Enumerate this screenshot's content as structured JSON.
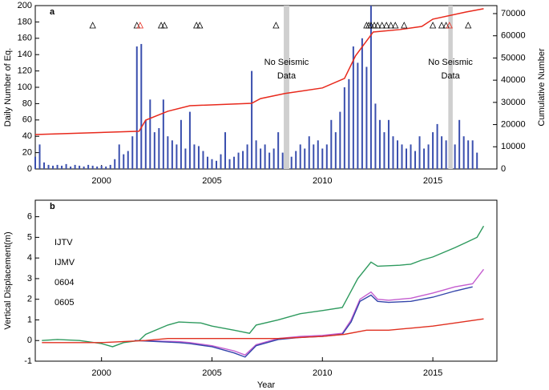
{
  "chart_data": [
    {
      "type": "bar",
      "panel_label": "a",
      "ylabel": "Daily Number of Eq.",
      "y2label": "Cumulative Number",
      "xlim": [
        1997,
        2017.9
      ],
      "xticks": [
        2000,
        2005,
        2010,
        2015
      ],
      "ylim": [
        0,
        200
      ],
      "yticks": [
        0,
        20,
        40,
        60,
        80,
        100,
        120,
        140,
        160,
        180,
        200
      ],
      "y2lim": [
        0,
        73600
      ],
      "y2ticks": [
        0,
        10000,
        20000,
        30000,
        40000,
        50000,
        60000,
        70000
      ],
      "color": "#3a4fae",
      "x": [
        1997.0,
        1997.2,
        1997.4,
        1997.6,
        1997.8,
        1998.0,
        1998.2,
        1998.4,
        1998.6,
        1998.8,
        1999.0,
        1999.2,
        1999.4,
        1999.6,
        1999.8,
        2000.0,
        2000.2,
        2000.4,
        2000.6,
        2000.8,
        2001.0,
        2001.2,
        2001.4,
        2001.6,
        2001.8,
        2002.0,
        2002.2,
        2002.4,
        2002.6,
        2002.8,
        2003.0,
        2003.2,
        2003.4,
        2003.6,
        2003.8,
        2004.0,
        2004.2,
        2004.4,
        2004.6,
        2004.8,
        2005.0,
        2005.2,
        2005.4,
        2005.6,
        2005.8,
        2006.0,
        2006.2,
        2006.4,
        2006.6,
        2006.8,
        2007.0,
        2007.2,
        2007.4,
        2007.6,
        2007.8,
        2008.0,
        2008.2,
        2008.4,
        2008.6,
        2008.8,
        2009.0,
        2009.2,
        2009.4,
        2009.6,
        2009.8,
        2010.0,
        2010.2,
        2010.4,
        2010.6,
        2010.8,
        2011.0,
        2011.2,
        2011.4,
        2011.6,
        2011.8,
        2012.0,
        2012.2,
        2012.4,
        2012.6,
        2012.8,
        2013.0,
        2013.2,
        2013.4,
        2013.6,
        2013.8,
        2014.0,
        2014.2,
        2014.4,
        2014.6,
        2014.8,
        2015.0,
        2015.2,
        2015.4,
        2015.6,
        2015.8,
        2016.0,
        2016.2,
        2016.4,
        2016.6,
        2016.8,
        2017.0
      ],
      "values": [
        15,
        30,
        8,
        5,
        4,
        5,
        4,
        6,
        3,
        5,
        4,
        3,
        5,
        4,
        3,
        4,
        3,
        5,
        12,
        30,
        18,
        22,
        40,
        150,
        153,
        60,
        85,
        45,
        50,
        85,
        40,
        35,
        30,
        60,
        25,
        70,
        30,
        28,
        22,
        15,
        12,
        10,
        18,
        45,
        12,
        15,
        20,
        22,
        30,
        120,
        35,
        25,
        30,
        20,
        25,
        45,
        20,
        0,
        15,
        22,
        30,
        25,
        40,
        30,
        35,
        25,
        30,
        60,
        45,
        70,
        100,
        110,
        150,
        130,
        160,
        125,
        200,
        80,
        60,
        45,
        60,
        40,
        35,
        30,
        25,
        30,
        22,
        40,
        25,
        30,
        45,
        55,
        40,
        35,
        0,
        30,
        60,
        40,
        35,
        35,
        20
      ],
      "cumulative": {
        "color": "#e8291c",
        "x": [
          1997,
          2001.7,
          2002,
          2003,
          2004,
          2006.8,
          2007.2,
          2008.3,
          2010,
          2011,
          2011.5,
          2012.3,
          2013.5,
          2014.5,
          2015,
          2016.5,
          2017.3
        ],
        "values": [
          15500,
          17000,
          22000,
          26000,
          28500,
          29600,
          31700,
          34000,
          36500,
          40800,
          51000,
          61700,
          62800,
          64200,
          67500,
          70700,
          72200
        ]
      },
      "events": {
        "x": [
          1999.6,
          2001.6,
          2001.75,
          2002.7,
          2002.85,
          2004.3,
          2004.45,
          2007.9,
          2012.0,
          2012.1,
          2012.2,
          2012.35,
          2012.5,
          2012.7,
          2012.9,
          2013.1,
          2013.3,
          2013.7,
          2015.0,
          2015.4,
          2015.6,
          2015.75,
          2016.6
        ],
        "colors": [
          "#000",
          "#000",
          "#e8291c",
          "#000",
          "#000",
          "#000",
          "#000",
          "#000",
          "#000",
          "#000",
          "#000",
          "#000",
          "#000",
          "#000",
          "#000",
          "#000",
          "#000",
          "#000",
          "#000",
          "#000",
          "#000",
          "#e8291c",
          "#000"
        ]
      },
      "no_data": [
        {
          "range": [
            2008.25,
            2008.5
          ],
          "label": [
            "No Seismic",
            "Data"
          ]
        },
        {
          "range": [
            2015.7,
            2015.9
          ],
          "label": [
            "No Seismic",
            "Data"
          ]
        }
      ]
    },
    {
      "type": "line",
      "panel_label": "b",
      "ylabel": "Vertical Displacement(m)",
      "xlabel": "Year",
      "xlim": [
        1997,
        2017.9
      ],
      "xticks": [
        2000,
        2005,
        2010,
        2015
      ],
      "ylim": [
        -1,
        6.8
      ],
      "yticks": [
        -1,
        0,
        1,
        2,
        3,
        4,
        5,
        6
      ],
      "series": [
        {
          "name": "IJTV",
          "color": "#c45ccf",
          "x": [
            2001.5,
            2003.5,
            2004,
            2005,
            2006,
            2006.5,
            2007,
            2008,
            2009,
            2010,
            2010.9,
            2011.3,
            2011.7,
            2012.2,
            2012.5,
            2013,
            2014,
            2015,
            2016,
            2016.8,
            2017.3
          ],
          "values": [
            0,
            -0.05,
            -0.1,
            -0.25,
            -0.5,
            -0.7,
            -0.2,
            0.1,
            0.2,
            0.25,
            0.35,
            1.0,
            2.0,
            2.35,
            2.0,
            1.95,
            2.05,
            2.3,
            2.6,
            2.75,
            3.45
          ]
        },
        {
          "name": "IJMV",
          "color": "#3344aa",
          "x": [
            2001.5,
            2003.5,
            2004,
            2005,
            2006,
            2006.5,
            2007,
            2008,
            2009,
            2010,
            2010.9,
            2011.3,
            2011.7,
            2012.2,
            2012.5,
            2013,
            2014,
            2015,
            2016,
            2016.8
          ],
          "values": [
            0,
            -0.1,
            -0.15,
            -0.3,
            -0.6,
            -0.8,
            -0.25,
            0.05,
            0.15,
            0.2,
            0.3,
            0.9,
            1.9,
            2.2,
            1.9,
            1.85,
            1.9,
            2.1,
            2.4,
            2.6
          ]
        },
        {
          "name": "0604",
          "color": "#2e9a5e",
          "x": [
            1997.3,
            1998,
            1999,
            2000,
            2000.5,
            2001,
            2001.7,
            2002,
            2003,
            2003.5,
            2004.5,
            2005,
            2006,
            2006.7,
            2007,
            2008,
            2009,
            2010,
            2010.9,
            2011.2,
            2011.6,
            2012.2,
            2012.5,
            2013.5,
            2014,
            2014.5,
            2015,
            2016,
            2016.5,
            2017,
            2017.3
          ],
          "values": [
            0,
            0.05,
            0,
            -0.15,
            -0.3,
            -0.1,
            0,
            0.3,
            0.75,
            0.9,
            0.85,
            0.7,
            0.5,
            0.35,
            0.75,
            1.0,
            1.3,
            1.45,
            1.6,
            2.2,
            3.0,
            3.8,
            3.6,
            3.65,
            3.7,
            3.9,
            4.05,
            4.5,
            4.75,
            5.0,
            5.55
          ]
        },
        {
          "name": "0605",
          "color": "#e03020",
          "x": [
            1997.3,
            2000,
            2002,
            2003,
            2005,
            2007,
            2008,
            2010,
            2011,
            2012,
            2013,
            2014,
            2015,
            2016,
            2017.3
          ],
          "values": [
            -0.1,
            -0.1,
            0,
            0.1,
            0.1,
            0.1,
            0.1,
            0.2,
            0.3,
            0.5,
            0.5,
            0.6,
            0.7,
            0.85,
            1.05
          ]
        }
      ]
    }
  ]
}
